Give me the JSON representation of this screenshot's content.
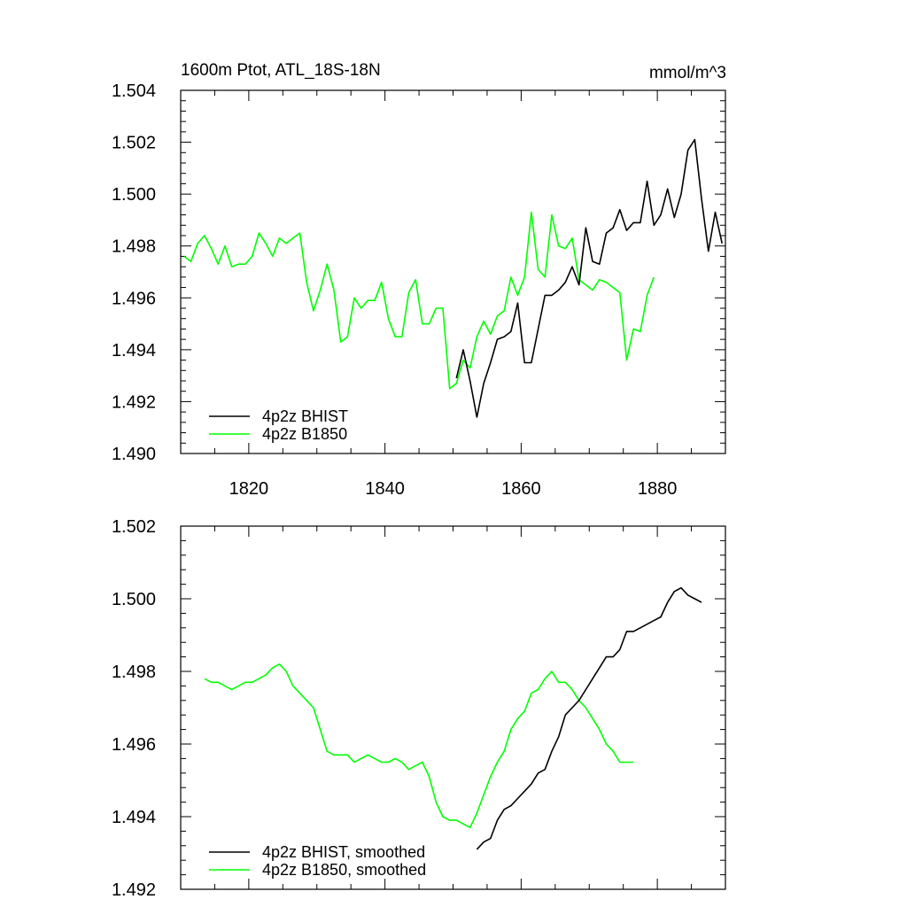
{
  "colors": {
    "bhist": "#000000",
    "b1850": "#00ff00",
    "axis": "#000000"
  },
  "chart_data": [
    {
      "type": "line",
      "title": "1600m Ptot, ATL_18S-18N",
      "units": "mmol/m^3",
      "xlim": [
        1810,
        1890
      ],
      "ylim": [
        1.49,
        1.504
      ],
      "x_ticks": [
        1820,
        1840,
        1860,
        1880
      ],
      "y_ticks": [
        1.49,
        1.492,
        1.494,
        1.496,
        1.498,
        1.5,
        1.502,
        1.504
      ],
      "y_tick_labels": [
        "1.490",
        "1.492",
        "1.494",
        "1.496",
        "1.498",
        "1.500",
        "1.502",
        "1.504"
      ],
      "x_tick_labels": [
        "1820",
        "1840",
        "1860",
        "1880"
      ],
      "legend": [
        "4p2z BHIST",
        "4p2z B1850"
      ],
      "series": [
        {
          "name": "4p2z BHIST",
          "color": "#000000",
          "x": [
            1850.5,
            1851.5,
            1852.5,
            1853.5,
            1854.5,
            1855.5,
            1856.5,
            1857.5,
            1858.5,
            1859.5,
            1860.5,
            1861.5,
            1862.5,
            1863.5,
            1864.5,
            1865.5,
            1866.5,
            1867.5,
            1868.5,
            1869.5,
            1870.5,
            1871.5,
            1872.5,
            1873.5,
            1874.5,
            1875.5,
            1876.5,
            1877.5,
            1878.5,
            1879.5,
            1880.5,
            1881.5,
            1882.5,
            1883.5,
            1884.5,
            1885.5,
            1886.5,
            1887.5,
            1888.5,
            1889.5
          ],
          "values": [
            1.4929,
            1.494,
            1.4928,
            1.4914,
            1.4927,
            1.4935,
            1.4944,
            1.4945,
            1.4947,
            1.4958,
            1.4935,
            1.4935,
            1.4948,
            1.4961,
            1.4961,
            1.4963,
            1.4966,
            1.4972,
            1.4965,
            1.4987,
            1.4974,
            1.4973,
            1.4985,
            1.4987,
            1.4994,
            1.4986,
            1.4989,
            1.4989,
            1.5005,
            1.4988,
            1.4992,
            1.5002,
            1.4991,
            1.5,
            1.5017,
            1.5021,
            1.4998,
            1.4978,
            1.4993,
            1.4981
          ]
        },
        {
          "name": "4p2z B1850",
          "color": "#00ff00",
          "x": [
            1810.5,
            1811.5,
            1812.5,
            1813.5,
            1814.5,
            1815.5,
            1816.5,
            1817.5,
            1818.5,
            1819.5,
            1820.5,
            1821.5,
            1822.5,
            1823.5,
            1824.5,
            1825.5,
            1826.5,
            1827.5,
            1828.5,
            1829.5,
            1830.5,
            1831.5,
            1832.5,
            1833.5,
            1834.5,
            1835.5,
            1836.5,
            1837.5,
            1838.5,
            1839.5,
            1840.5,
            1841.5,
            1842.5,
            1843.5,
            1844.5,
            1845.5,
            1846.5,
            1847.5,
            1848.5,
            1849.5,
            1850.5,
            1851.5,
            1852.5,
            1853.5,
            1854.5,
            1855.5,
            1856.5,
            1857.5,
            1858.5,
            1859.5,
            1860.5,
            1861.5,
            1862.5,
            1863.5,
            1864.5,
            1865.5,
            1866.5,
            1867.5,
            1868.5,
            1869.5,
            1870.5,
            1871.5,
            1872.5,
            1873.5,
            1874.5,
            1875.5,
            1876.5,
            1877.5,
            1878.5,
            1879.5
          ],
          "values": [
            1.4976,
            1.4974,
            1.4981,
            1.4984,
            1.4979,
            1.4973,
            1.498,
            1.4972,
            1.4973,
            1.4973,
            1.4976,
            1.4985,
            1.4981,
            1.4976,
            1.4983,
            1.4981,
            1.4983,
            1.4985,
            1.4966,
            1.4955,
            1.4963,
            1.4973,
            1.4963,
            1.4943,
            1.4945,
            1.496,
            1.4956,
            1.4959,
            1.4959,
            1.4966,
            1.4952,
            1.4945,
            1.4945,
            1.4962,
            1.4967,
            1.495,
            1.495,
            1.4956,
            1.4956,
            1.4925,
            1.4927,
            1.4936,
            1.4933,
            1.4945,
            1.4951,
            1.4946,
            1.4953,
            1.4955,
            1.4968,
            1.4961,
            1.4968,
            1.4993,
            1.4971,
            1.4968,
            1.4992,
            1.498,
            1.4979,
            1.4983,
            1.4967,
            1.4965,
            1.4963,
            1.4967,
            1.4966,
            1.4964,
            1.4962,
            1.4936,
            1.4948,
            1.4947,
            1.4961,
            1.4968
          ]
        }
      ]
    },
    {
      "type": "line",
      "xlim": [
        1810,
        1890
      ],
      "ylim": [
        1.492,
        1.502
      ],
      "x_ticks": [
        1820,
        1840,
        1860,
        1880
      ],
      "y_ticks": [
        1.492,
        1.494,
        1.496,
        1.498,
        1.5,
        1.502
      ],
      "y_tick_labels": [
        "1.492",
        "1.494",
        "1.496",
        "1.498",
        "1.500",
        "1.502"
      ],
      "legend": [
        "4p2z BHIST, smoothed",
        "4p2z B1850, smoothed"
      ],
      "series": [
        {
          "name": "4p2z BHIST, smoothed",
          "color": "#000000",
          "x": [
            1853.5,
            1854.5,
            1855.5,
            1856.5,
            1857.5,
            1858.5,
            1859.5,
            1860.5,
            1861.5,
            1862.5,
            1863.5,
            1864.5,
            1865.5,
            1866.5,
            1867.5,
            1868.5,
            1869.5,
            1870.5,
            1871.5,
            1872.5,
            1873.5,
            1874.5,
            1875.5,
            1876.5,
            1877.5,
            1878.5,
            1879.5,
            1880.5,
            1881.5,
            1882.5,
            1883.5,
            1884.5,
            1885.5,
            1886.5
          ],
          "values": [
            1.4931,
            1.4933,
            1.4934,
            1.4939,
            1.4942,
            1.4943,
            1.4945,
            1.4947,
            1.4949,
            1.4952,
            1.4953,
            1.4958,
            1.4962,
            1.4968,
            1.497,
            1.4972,
            1.4975,
            1.4978,
            1.4981,
            1.4984,
            1.4984,
            1.4986,
            1.4991,
            1.4991,
            1.4992,
            1.4993,
            1.4994,
            1.4995,
            1.4999,
            1.5002,
            1.5003,
            1.5001,
            1.5,
            1.4999
          ]
        },
        {
          "name": "4p2z B1850, smoothed",
          "color": "#00ff00",
          "x": [
            1813.5,
            1814.5,
            1815.5,
            1816.5,
            1817.5,
            1818.5,
            1819.5,
            1820.5,
            1821.5,
            1822.5,
            1823.5,
            1824.5,
            1825.5,
            1826.5,
            1827.5,
            1828.5,
            1829.5,
            1830.5,
            1831.5,
            1832.5,
            1833.5,
            1834.5,
            1835.5,
            1836.5,
            1837.5,
            1838.5,
            1839.5,
            1840.5,
            1841.5,
            1842.5,
            1843.5,
            1844.5,
            1845.5,
            1846.5,
            1847.5,
            1848.5,
            1849.5,
            1850.5,
            1851.5,
            1852.5,
            1853.5,
            1854.5,
            1855.5,
            1856.5,
            1857.5,
            1858.5,
            1859.5,
            1860.5,
            1861.5,
            1862.5,
            1863.5,
            1864.5,
            1865.5,
            1866.5,
            1867.5,
            1868.5,
            1869.5,
            1870.5,
            1871.5,
            1872.5,
            1873.5,
            1874.5,
            1875.5,
            1876.5
          ],
          "values": [
            1.4978,
            1.4977,
            1.4977,
            1.4976,
            1.4975,
            1.4976,
            1.4977,
            1.4977,
            1.4978,
            1.4979,
            1.4981,
            1.4982,
            1.498,
            1.4976,
            1.4974,
            1.4972,
            1.497,
            1.4964,
            1.4958,
            1.4957,
            1.4957,
            1.4957,
            1.4955,
            1.4956,
            1.4957,
            1.4956,
            1.4955,
            1.4955,
            1.4956,
            1.4955,
            1.4953,
            1.4954,
            1.4955,
            1.4951,
            1.4944,
            1.494,
            1.4939,
            1.4939,
            1.4938,
            1.4937,
            1.4941,
            1.4946,
            1.4951,
            1.4955,
            1.4958,
            1.4964,
            1.4967,
            1.4969,
            1.4974,
            1.4975,
            1.4978,
            1.498,
            1.4977,
            1.4977,
            1.4975,
            1.4972,
            1.497,
            1.4967,
            1.4964,
            1.496,
            1.4958,
            1.4955,
            1.4955,
            1.4955
          ]
        }
      ]
    }
  ]
}
